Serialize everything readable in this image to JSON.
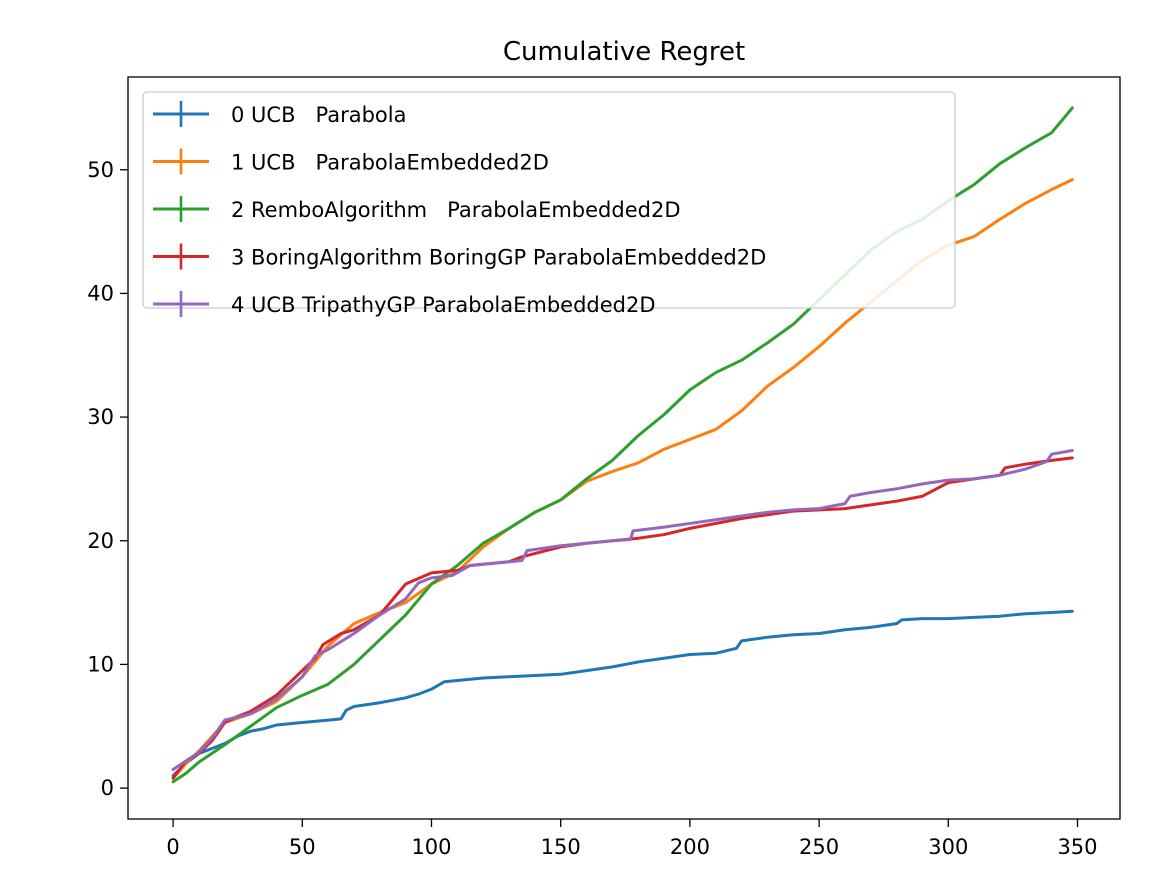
{
  "chart_data": {
    "type": "line",
    "title": "Cumulative Regret",
    "xlabel": "",
    "ylabel": "",
    "xlim": [
      -17.45,
      366.45
    ],
    "ylim": [
      -2.5,
      57.5
    ],
    "xticks": [
      0,
      50,
      100,
      150,
      200,
      250,
      300,
      350
    ],
    "yticks": [
      0,
      10,
      20,
      30,
      40,
      50
    ],
    "grid": false,
    "legend_position": "upper-left",
    "legend_marker": "errorbar",
    "series": [
      {
        "name": "0 UCB   Parabola",
        "color": "#1f77b4",
        "points": [
          [
            0,
            1.0
          ],
          [
            5,
            2.0
          ],
          [
            10,
            2.8
          ],
          [
            15,
            3.2
          ],
          [
            20,
            3.6
          ],
          [
            25,
            4.2
          ],
          [
            30,
            4.6
          ],
          [
            35,
            4.8
          ],
          [
            40,
            5.1
          ],
          [
            50,
            5.3
          ],
          [
            60,
            5.5
          ],
          [
            65,
            5.6
          ],
          [
            67,
            6.3
          ],
          [
            70,
            6.6
          ],
          [
            80,
            6.9
          ],
          [
            90,
            7.3
          ],
          [
            95,
            7.6
          ],
          [
            100,
            8.0
          ],
          [
            105,
            8.6
          ],
          [
            110,
            8.7
          ],
          [
            120,
            8.9
          ],
          [
            130,
            9.0
          ],
          [
            140,
            9.1
          ],
          [
            150,
            9.2
          ],
          [
            160,
            9.5
          ],
          [
            170,
            9.8
          ],
          [
            180,
            10.2
          ],
          [
            190,
            10.5
          ],
          [
            200,
            10.8
          ],
          [
            210,
            10.9
          ],
          [
            218,
            11.3
          ],
          [
            220,
            11.9
          ],
          [
            230,
            12.2
          ],
          [
            240,
            12.4
          ],
          [
            250,
            12.5
          ],
          [
            260,
            12.8
          ],
          [
            270,
            13.0
          ],
          [
            280,
            13.3
          ],
          [
            282,
            13.6
          ],
          [
            290,
            13.7
          ],
          [
            300,
            13.7
          ],
          [
            310,
            13.8
          ],
          [
            320,
            13.9
          ],
          [
            330,
            14.1
          ],
          [
            340,
            14.2
          ],
          [
            348,
            14.3
          ]
        ]
      },
      {
        "name": "1 UCB   ParabolaEmbedded2D",
        "color": "#ff7f0e",
        "points": [
          [
            0,
            0.8
          ],
          [
            5,
            2.0
          ],
          [
            10,
            3.0
          ],
          [
            20,
            5.3
          ],
          [
            30,
            6.0
          ],
          [
            40,
            7.0
          ],
          [
            50,
            9.0
          ],
          [
            60,
            11.5
          ],
          [
            70,
            13.3
          ],
          [
            80,
            14.2
          ],
          [
            90,
            15.0
          ],
          [
            100,
            16.5
          ],
          [
            110,
            17.5
          ],
          [
            120,
            19.5
          ],
          [
            130,
            21.0
          ],
          [
            140,
            22.3
          ],
          [
            150,
            23.3
          ],
          [
            160,
            24.8
          ],
          [
            170,
            25.6
          ],
          [
            180,
            26.3
          ],
          [
            190,
            27.4
          ],
          [
            200,
            28.2
          ],
          [
            210,
            29.0
          ],
          [
            220,
            30.5
          ],
          [
            230,
            32.5
          ],
          [
            240,
            34.0
          ],
          [
            250,
            35.7
          ],
          [
            260,
            37.6
          ],
          [
            270,
            39.3
          ],
          [
            280,
            41.0
          ],
          [
            290,
            42.7
          ],
          [
            300,
            43.9
          ],
          [
            310,
            44.6
          ],
          [
            320,
            46.0
          ],
          [
            330,
            47.3
          ],
          [
            340,
            48.4
          ],
          [
            348,
            49.2
          ]
        ]
      },
      {
        "name": "2 RemboAlgorithm   ParabolaEmbedded2D",
        "color": "#2ca02c",
        "points": [
          [
            0,
            0.5
          ],
          [
            5,
            1.2
          ],
          [
            10,
            2.1
          ],
          [
            20,
            3.5
          ],
          [
            30,
            5.0
          ],
          [
            40,
            6.5
          ],
          [
            50,
            7.5
          ],
          [
            60,
            8.4
          ],
          [
            70,
            10.0
          ],
          [
            80,
            12.0
          ],
          [
            90,
            14.0
          ],
          [
            100,
            16.5
          ],
          [
            110,
            18.0
          ],
          [
            120,
            19.8
          ],
          [
            130,
            21.0
          ],
          [
            140,
            22.3
          ],
          [
            150,
            23.3
          ],
          [
            160,
            25.0
          ],
          [
            170,
            26.5
          ],
          [
            180,
            28.5
          ],
          [
            190,
            30.2
          ],
          [
            200,
            32.2
          ],
          [
            210,
            33.6
          ],
          [
            220,
            34.6
          ],
          [
            230,
            36.0
          ],
          [
            240,
            37.5
          ],
          [
            250,
            39.5
          ],
          [
            260,
            41.5
          ],
          [
            270,
            43.5
          ],
          [
            280,
            45.0
          ],
          [
            290,
            46.0
          ],
          [
            300,
            47.5
          ],
          [
            310,
            48.8
          ],
          [
            320,
            50.5
          ],
          [
            330,
            51.8
          ],
          [
            340,
            53.0
          ],
          [
            348,
            55.0
          ]
        ]
      },
      {
        "name": "3 BoringAlgorithm BoringGP ParabolaEmbedded2D",
        "color": "#d62728",
        "points": [
          [
            0,
            0.8
          ],
          [
            5,
            2.2
          ],
          [
            10,
            2.8
          ],
          [
            15,
            3.8
          ],
          [
            20,
            5.3
          ],
          [
            25,
            5.8
          ],
          [
            30,
            6.2
          ],
          [
            40,
            7.5
          ],
          [
            50,
            9.5
          ],
          [
            55,
            10.5
          ],
          [
            58,
            11.6
          ],
          [
            65,
            12.5
          ],
          [
            70,
            12.8
          ],
          [
            80,
            14.0
          ],
          [
            90,
            16.5
          ],
          [
            100,
            17.4
          ],
          [
            105,
            17.5
          ],
          [
            110,
            17.6
          ],
          [
            115,
            18.0
          ],
          [
            130,
            18.3
          ],
          [
            135,
            18.7
          ],
          [
            150,
            19.5
          ],
          [
            160,
            19.8
          ],
          [
            170,
            20.0
          ],
          [
            180,
            20.2
          ],
          [
            190,
            20.5
          ],
          [
            200,
            21.0
          ],
          [
            220,
            21.8
          ],
          [
            240,
            22.4
          ],
          [
            260,
            22.6
          ],
          [
            270,
            22.9
          ],
          [
            280,
            23.2
          ],
          [
            290,
            23.6
          ],
          [
            300,
            24.7
          ],
          [
            310,
            25.0
          ],
          [
            320,
            25.3
          ],
          [
            322,
            25.9
          ],
          [
            330,
            26.2
          ],
          [
            340,
            26.5
          ],
          [
            348,
            26.7
          ]
        ]
      },
      {
        "name": "4 UCB TripathyGP ParabolaEmbedded2D",
        "color": "#9467bd",
        "points": [
          [
            0,
            1.5
          ],
          [
            5,
            2.2
          ],
          [
            10,
            2.9
          ],
          [
            15,
            4.0
          ],
          [
            20,
            5.5
          ],
          [
            30,
            6.0
          ],
          [
            40,
            7.2
          ],
          [
            50,
            9.0
          ],
          [
            55,
            10.7
          ],
          [
            60,
            11.2
          ],
          [
            70,
            12.5
          ],
          [
            80,
            14.0
          ],
          [
            90,
            15.3
          ],
          [
            95,
            16.6
          ],
          [
            100,
            17.0
          ],
          [
            108,
            17.2
          ],
          [
            115,
            18.0
          ],
          [
            125,
            18.2
          ],
          [
            135,
            18.4
          ],
          [
            137,
            19.2
          ],
          [
            150,
            19.6
          ],
          [
            160,
            19.8
          ],
          [
            170,
            20.0
          ],
          [
            177,
            20.1
          ],
          [
            178,
            20.8
          ],
          [
            190,
            21.1
          ],
          [
            200,
            21.4
          ],
          [
            210,
            21.7
          ],
          [
            220,
            22.0
          ],
          [
            230,
            22.3
          ],
          [
            240,
            22.5
          ],
          [
            250,
            22.6
          ],
          [
            260,
            23.0
          ],
          [
            262,
            23.6
          ],
          [
            270,
            23.9
          ],
          [
            280,
            24.2
          ],
          [
            290,
            24.6
          ],
          [
            300,
            24.9
          ],
          [
            310,
            25.0
          ],
          [
            320,
            25.3
          ],
          [
            330,
            25.8
          ],
          [
            338,
            26.4
          ],
          [
            340,
            27.0
          ],
          [
            348,
            27.3
          ]
        ]
      }
    ]
  }
}
